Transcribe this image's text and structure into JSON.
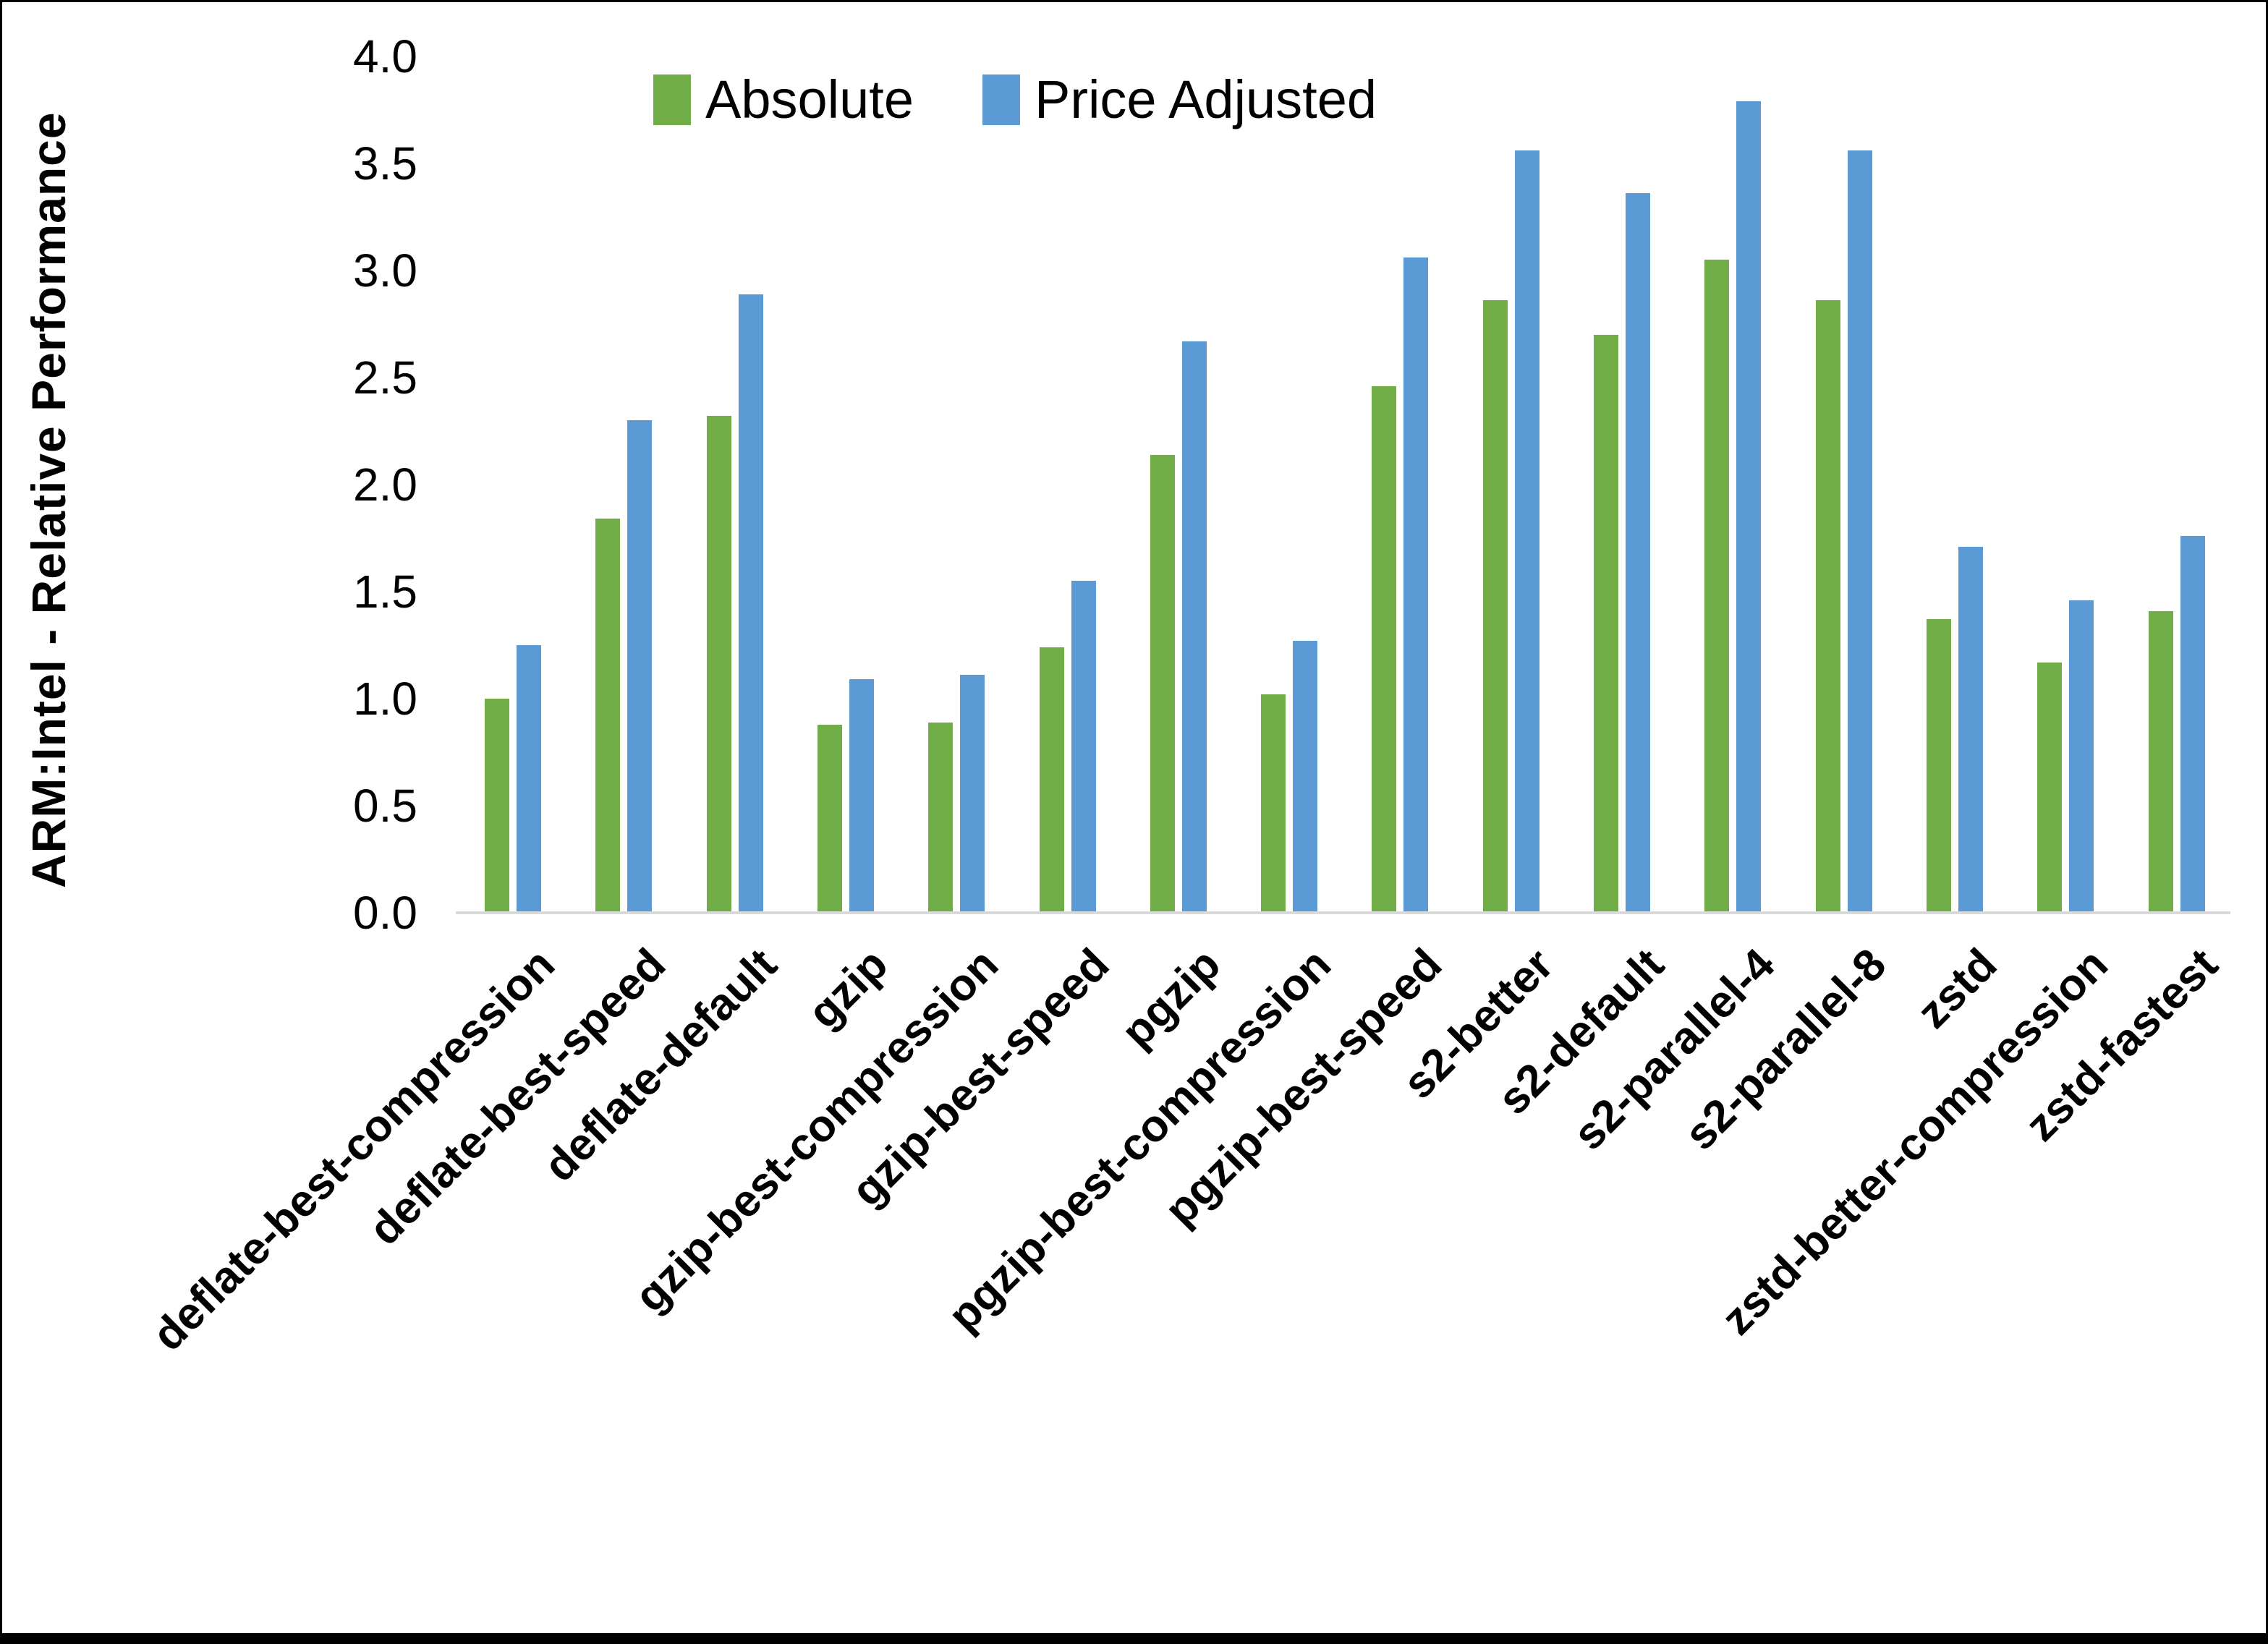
{
  "chart_data": {
    "type": "bar",
    "title": "",
    "xlabel": "",
    "ylabel": "ARM:Intel - Relative Performance",
    "ylim": [
      0.0,
      4.0
    ],
    "ytick_labels": [
      "0.0",
      "0.5",
      "1.0",
      "1.5",
      "2.0",
      "2.5",
      "3.0",
      "3.5",
      "4.0"
    ],
    "grid": false,
    "legend_position": "top",
    "axis_line_color": "#D9D9D9",
    "categories": [
      "deflate-best-compression",
      "deflate-best-speed",
      "deflate-default",
      "gzip",
      "gzip-best-compression",
      "gzip-best-speed",
      "pgzip",
      "pgzip-best-compression",
      "pgzip-best-speed",
      "s2-better",
      "s2-default",
      "s2-parallel-4",
      "s2-parallel-8",
      "zstd",
      "zstd-better-compression",
      "zstd-fastest"
    ],
    "series": [
      {
        "name": "Absolute",
        "color": "#70AD47",
        "values": [
          1.0,
          1.84,
          2.32,
          0.88,
          0.89,
          1.24,
          2.14,
          1.02,
          2.46,
          2.86,
          2.7,
          3.05,
          2.86,
          1.37,
          1.17,
          1.41
        ]
      },
      {
        "name": "Price Adjusted",
        "color": "#5B9BD5",
        "values": [
          1.25,
          2.3,
          2.89,
          1.09,
          1.11,
          1.55,
          2.67,
          1.27,
          3.06,
          3.56,
          3.36,
          3.79,
          3.56,
          1.71,
          1.46,
          1.76
        ]
      }
    ]
  }
}
